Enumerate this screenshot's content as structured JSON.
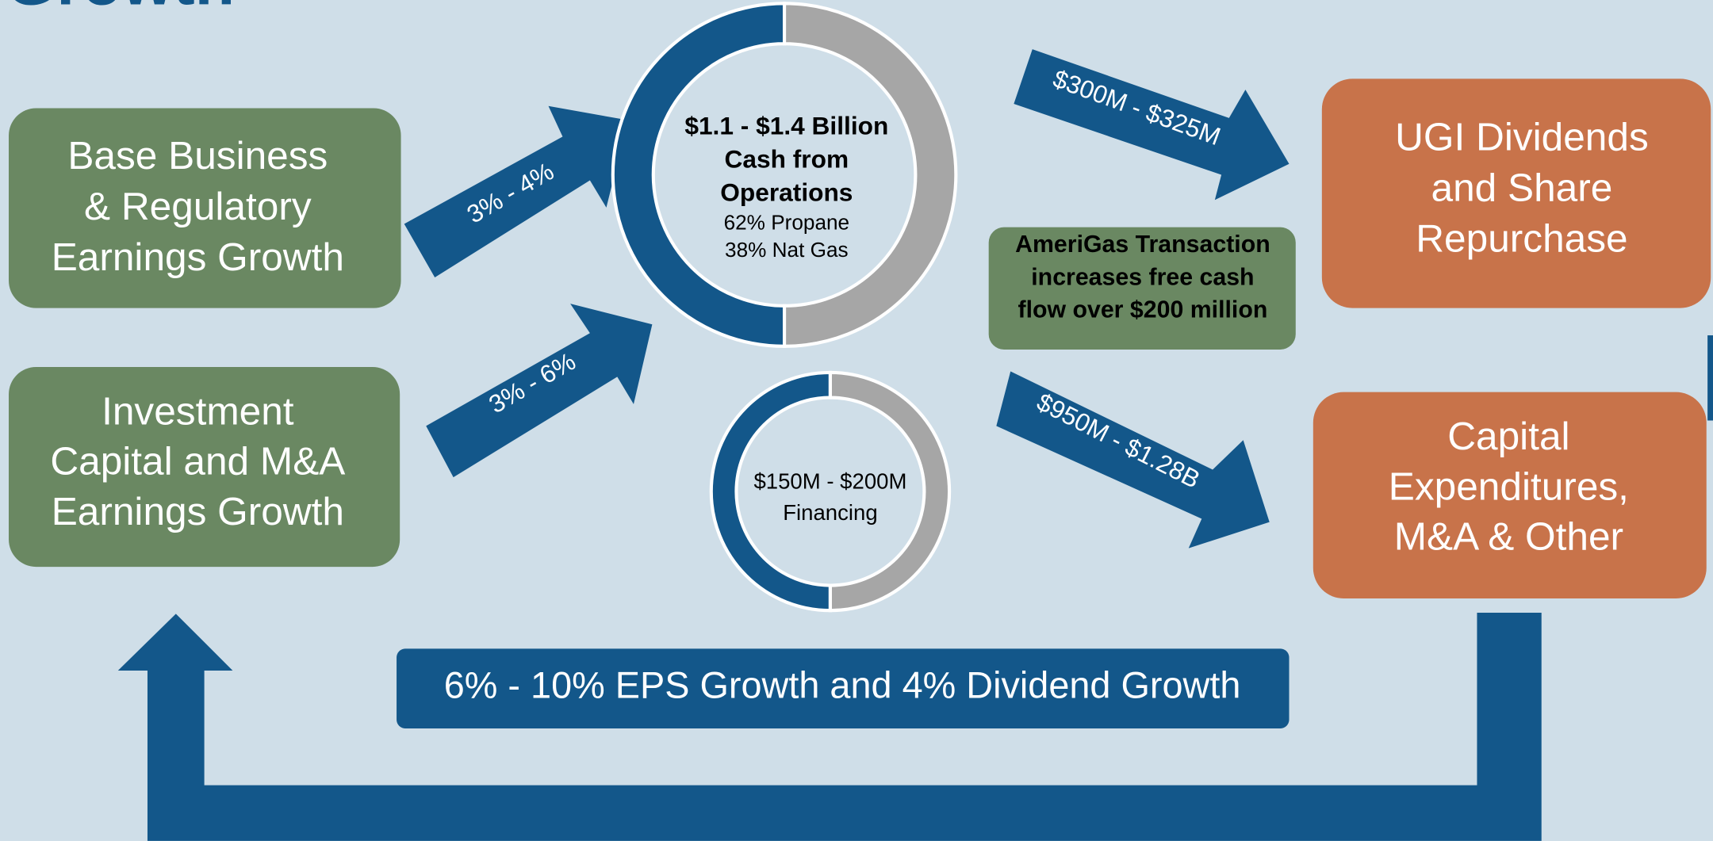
{
  "title": "Growth",
  "inputs": [
    {
      "lines": [
        "Base Business",
        "& Regulatory",
        "Earnings Growth"
      ],
      "rate": "3% - 4%"
    },
    {
      "lines": [
        "Investment",
        "Capital and M&A",
        "Earnings Growth"
      ],
      "rate": "3% - 6%"
    }
  ],
  "cash_ring": {
    "lines": [
      "$1.1 - $1.4 Billion",
      "Cash from",
      "Operations"
    ],
    "details": [
      "62% Propane",
      "38% Nat Gas"
    ]
  },
  "financing_ring": {
    "lines": [
      "$150M - $200M",
      "Financing"
    ]
  },
  "transaction_note": {
    "lines": [
      "AmeriGas Transaction",
      "increases free cash",
      "flow over $200 million"
    ]
  },
  "outputs": [
    {
      "lines": [
        "UGI Dividends",
        "and Share",
        "Repurchase"
      ],
      "amount": "$300M - $325M"
    },
    {
      "lines": [
        "Capital",
        "Expenditures,",
        "M&A & Other"
      ],
      "amount": "$950M - $1.28B"
    }
  ],
  "banner": "6% - 10% EPS Growth and 4% Dividend Growth"
}
